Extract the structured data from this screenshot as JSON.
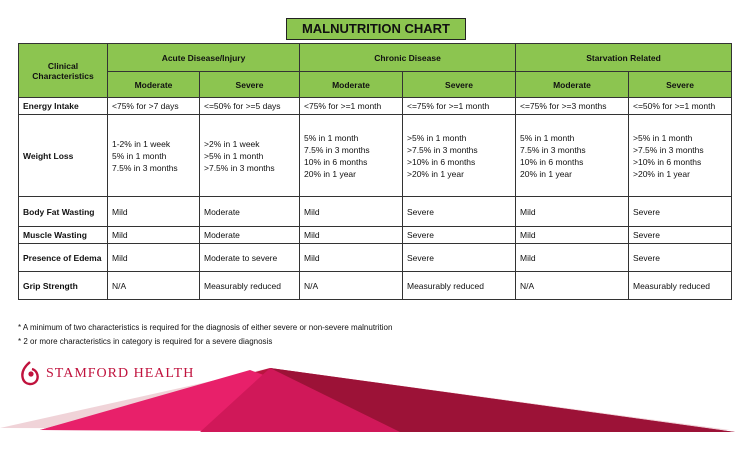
{
  "title": "MALNUTRITION CHART",
  "header": {
    "clinical": "Clinical Characteristics",
    "groups": [
      "Acute Disease/Injury",
      "Chronic Disease",
      "Starvation Related"
    ],
    "subs": [
      "Moderate",
      "Severe",
      "Moderate",
      "Severe",
      "Moderate",
      "Severe"
    ]
  },
  "rows": [
    {
      "label": "Energy Intake",
      "cells": [
        [
          "<75% for >7 days"
        ],
        [
          "<=50% for >=5 days"
        ],
        [
          "<75% for >=1 month"
        ],
        [
          "<=75% for >=1 month"
        ],
        [
          "<=75% for >=3 months"
        ],
        [
          "<=50% for >=1 month"
        ]
      ]
    },
    {
      "label": "Weight Loss",
      "cells": [
        [
          "1-2% in 1 week",
          "5% in 1 month",
          "7.5% in 3 months"
        ],
        [
          ">2% in 1 week",
          ">5% in 1 month",
          ">7.5% in 3 months"
        ],
        [
          "5% in 1 month",
          "7.5% in 3 months",
          "10% in 6 months",
          "20% in 1 year"
        ],
        [
          ">5% in 1 month",
          ">7.5% in 3 months",
          ">10% in 6 months",
          ">20% in 1 year"
        ],
        [
          "5% in 1 month",
          "7.5% in 3 months",
          "10% in 6 months",
          "20% in 1 year"
        ],
        [
          ">5% in 1 month",
          ">7.5% in 3 months",
          ">10% in 6 months",
          ">20% in 1 year"
        ]
      ]
    },
    {
      "label": "Body Fat Wasting",
      "cells": [
        [
          "Mild"
        ],
        [
          "Moderate"
        ],
        [
          "Mild"
        ],
        [
          "Severe"
        ],
        [
          "Mild"
        ],
        [
          "Severe"
        ]
      ]
    },
    {
      "label": "Muscle Wasting",
      "cells": [
        [
          "Mild"
        ],
        [
          "Moderate"
        ],
        [
          "Mild"
        ],
        [
          "Severe"
        ],
        [
          "Mild"
        ],
        [
          "Severe"
        ]
      ]
    },
    {
      "label": "Presence of Edema",
      "cells": [
        [
          "Mild"
        ],
        [
          "Moderate to severe"
        ],
        [
          "Mild"
        ],
        [
          "Severe"
        ],
        [
          "Mild"
        ],
        [
          "Severe"
        ]
      ]
    },
    {
      "label": "Grip Strength",
      "cells": [
        [
          "N/A"
        ],
        [
          "Measurably reduced"
        ],
        [
          "N/A"
        ],
        [
          "Measurably reduced"
        ],
        [
          "N/A"
        ],
        [
          "Measurably reduced"
        ]
      ]
    }
  ],
  "notes": [
    "* A minimum of two characteristics is required for the diagnosis of either severe or non-severe malnutrition",
    "* 2 or more characteristics in category is required for a severe diagnosis"
  ],
  "logo": {
    "text": "STAMFORD HEALTH"
  },
  "colors": {
    "green": "#8cc550",
    "brand": "#c0123d"
  }
}
